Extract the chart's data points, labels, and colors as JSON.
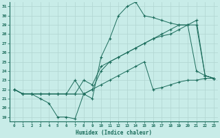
{
  "xlabel": "Humidex (Indice chaleur)",
  "bg_color": "#c8ece8",
  "line_color": "#1a6b5a",
  "grid_color": "#b0d4d0",
  "xlim": [
    -0.5,
    23.5
  ],
  "ylim": [
    18.5,
    31.5
  ],
  "xticks": [
    0,
    1,
    2,
    3,
    4,
    5,
    6,
    7,
    8,
    9,
    10,
    11,
    12,
    13,
    14,
    15,
    16,
    17,
    18,
    19,
    20,
    21,
    22,
    23
  ],
  "yticks": [
    19,
    20,
    21,
    22,
    23,
    24,
    25,
    26,
    27,
    28,
    29,
    30,
    31
  ],
  "line1": [
    22,
    21.5,
    21.5,
    21,
    20.5,
    19.0,
    19.0,
    18.8,
    21.5,
    21.0,
    25.5,
    27.5,
    30.0,
    31.0,
    31.5,
    30.0,
    29.8,
    29.5,
    29.2,
    29.0,
    29.0,
    24.0,
    23.5,
    23.2
  ],
  "line2": [
    22,
    21.5,
    21.5,
    21.5,
    21.5,
    21.5,
    21.5,
    21.5,
    21.5,
    22.0,
    22.5,
    23.0,
    23.5,
    24.0,
    24.5,
    25.0,
    22.0,
    22.2,
    22.5,
    22.8,
    23.0,
    23.0,
    23.2,
    23.2
  ],
  "line3": [
    22,
    21.5,
    21.5,
    21.5,
    21.5,
    21.5,
    21.5,
    21.5,
    23.0,
    22.5,
    24.5,
    25.0,
    25.5,
    26.0,
    26.5,
    27.0,
    27.5,
    27.8,
    28.0,
    28.5,
    29.0,
    29.0,
    23.5,
    23.2
  ],
  "line4": [
    22,
    21.5,
    21.5,
    21.5,
    21.5,
    21.5,
    21.5,
    23.0,
    21.5,
    22.0,
    24.0,
    25.0,
    25.5,
    26.0,
    26.5,
    27.0,
    27.5,
    28.0,
    28.5,
    29.0,
    29.0,
    29.5,
    23.5,
    23.2
  ]
}
